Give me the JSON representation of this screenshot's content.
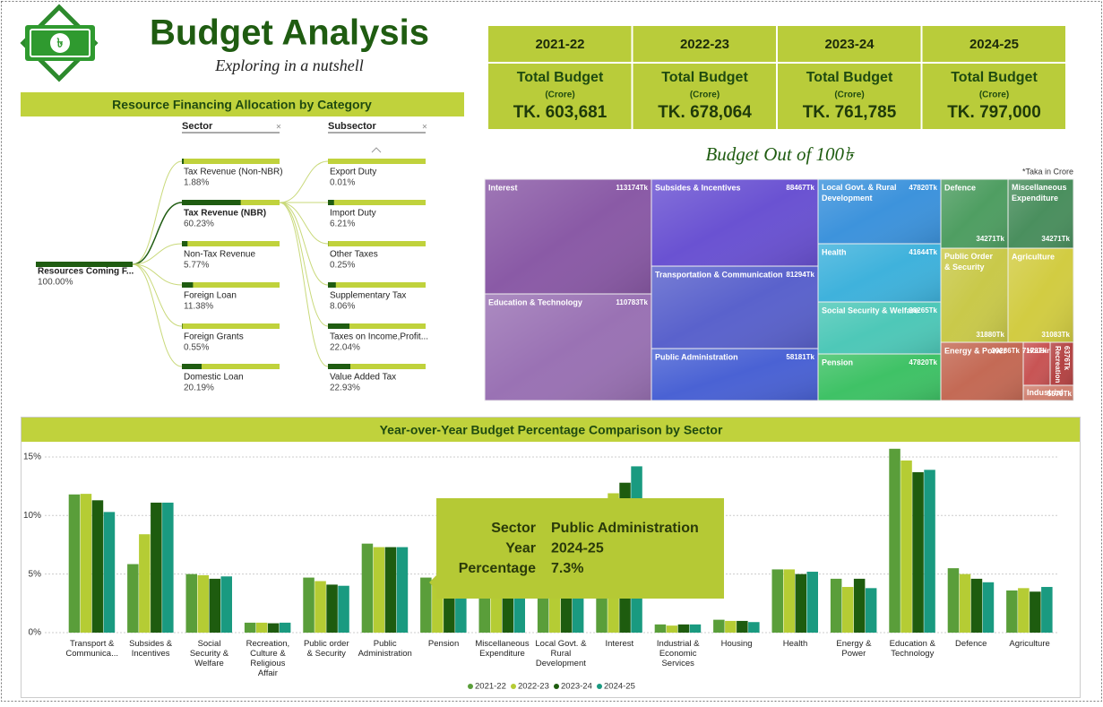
{
  "header": {
    "title": "Budget Analysis",
    "subtitle": "Exploring in a nutshell"
  },
  "kpis": [
    {
      "year": "2021-22",
      "label": "Total Budget",
      "unit": "(Crore)",
      "value": "TK. 603,681"
    },
    {
      "year": "2022-23",
      "label": "Total Budget",
      "unit": "(Crore)",
      "value": "TK. 678,064"
    },
    {
      "year": "2023-24",
      "label": "Total Budget",
      "unit": "(Crore)",
      "value": "TK. 761,785"
    },
    {
      "year": "2024-25",
      "label": "Total Budget",
      "unit": "(Crore)",
      "value": "TK. 797,000"
    }
  ],
  "chart_data": [
    {
      "type": "decomposition",
      "title": "Resource Financing Allocation by Category",
      "columns": [
        "Sector",
        "Subsector"
      ],
      "root_label": "Resources Coming F...",
      "root_value": 100,
      "root_value_label": "100.00%",
      "sectors": {
        "categories": [
          "Tax Revenue (Non-NBR)",
          "Tax Revenue (NBR)",
          "Non-Tax Revenue",
          "Foreign Loan",
          "Foreign Grants",
          "Domestic Loan"
        ],
        "values": [
          1.88,
          60.23,
          5.77,
          11.38,
          0.55,
          20.19
        ],
        "value_labels": [
          "1.88%",
          "60.23%",
          "5.77%",
          "11.38%",
          "0.55%",
          "20.19%"
        ]
      },
      "subsectors": {
        "categories": [
          "Export Duty",
          "Import Duty",
          "Other Taxes",
          "Supplementary Tax",
          "Taxes on Income,Profit...",
          "Value Added Tax"
        ],
        "values": [
          0.01,
          6.21,
          0.25,
          8.06,
          22.04,
          22.93
        ],
        "value_labels": [
          "0.01%",
          "6.21%",
          "0.25%",
          "8.06%",
          "22.04%",
          "22.93%"
        ]
      }
    },
    {
      "type": "treemap",
      "title": "Budget Out of 100৳",
      "note": "*Taka in Crore",
      "categories": [
        "Interest",
        "Subsides & Incentives",
        "Local Govt. & Rural Development",
        "Defence",
        "Miscellaneous Expenditure",
        "Education & Technology",
        "Transportation & Communication",
        "Health",
        "Public Order & Security",
        "Agriculture",
        "Public Administration",
        "Social Security & Welfare",
        "Pension",
        "Energy & Power",
        "Housing",
        "Recreation",
        "Industrial"
      ],
      "values": [
        113174,
        88467,
        47820,
        34271,
        34271,
        110783,
        81294,
        41644,
        31880,
        31083,
        58181,
        38265,
        47820,
        30286,
        7173,
        6376,
        5579
      ],
      "value_labels": [
        "113174Tk",
        "88467Tk",
        "47820Tk",
        "34271Tk",
        "34271Tk",
        "110783Tk",
        "81294Tk",
        "41644Tk",
        "31880Tk",
        "31083Tk",
        "58181Tk",
        "38265Tk",
        "47820Tk",
        "30286Tk",
        "7173Tk",
        "6376Tk",
        "5579Tk"
      ],
      "colors": [
        "#8a5aa6",
        "#6a52d2",
        "#3d93dc",
        "#4f9e62",
        "#4a8f5e",
        "#9a72b4",
        "#5a62cc",
        "#3fb2dc",
        "#c9c94a",
        "#d2cc42",
        "#4a62d4",
        "#4ec8b8",
        "#3fc266",
        "#c46a55",
        "#c85454",
        "#b44444",
        "#d08070"
      ]
    },
    {
      "type": "bar",
      "title": "Year-over-Year Budget Percentage Comparison by Sector",
      "categories": [
        "Transport & Communica...",
        "Subsides & Incentives",
        "Social Security & Welfare",
        "Recreation, Culture & Religious Affair",
        "Public order & Security",
        "Public Administration",
        "Pension",
        "Miscellaneous Expenditure",
        "Local Govt. & Rural Development",
        "Interest",
        "Industrial & Economic Services",
        "Housing",
        "Health",
        "Energy & Power",
        "Education & Technology",
        "Defence",
        "Agriculture"
      ],
      "series": [
        {
          "name": "2021-22",
          "color": "#5a9e3a",
          "values": [
            11.8,
            5.85,
            5.0,
            0.85,
            4.7,
            7.6,
            4.7,
            4.5,
            6.5,
            11.0,
            0.7,
            1.1,
            5.4,
            4.6,
            15.7,
            5.5,
            3.6
          ]
        },
        {
          "name": "2022-23",
          "color": "#b5cc34",
          "values": [
            11.85,
            8.4,
            4.9,
            0.85,
            4.4,
            7.3,
            4.3,
            4.6,
            6.3,
            11.9,
            0.6,
            1.0,
            5.4,
            3.9,
            14.7,
            5.0,
            3.8
          ]
        },
        {
          "name": "2023-24",
          "color": "#1e5c0f",
          "values": [
            11.3,
            11.1,
            4.6,
            0.8,
            4.1,
            7.3,
            4.2,
            4.7,
            6.0,
            12.8,
            0.7,
            1.0,
            5.0,
            4.6,
            13.7,
            4.6,
            3.5
          ]
        },
        {
          "name": "2024-25",
          "color": "#1a9a80",
          "values": [
            10.3,
            11.1,
            4.8,
            0.85,
            4.0,
            7.3,
            4.0,
            4.5,
            6.0,
            14.2,
            0.7,
            0.9,
            5.2,
            3.8,
            13.9,
            4.3,
            3.9
          ]
        }
      ],
      "ylim": [
        0,
        15.8
      ],
      "yticks": [
        {
          "value": 0,
          "label": "0%"
        },
        {
          "value": 5,
          "label": "5%"
        },
        {
          "value": 10,
          "label": "10%"
        },
        {
          "value": 15,
          "label": "15%"
        }
      ],
      "grid": true,
      "tooltip": {
        "labels": [
          "Sector",
          "Year",
          "Percentage"
        ],
        "values": [
          "Public Administration",
          "2024-25",
          "7.3%"
        ]
      }
    }
  ]
}
